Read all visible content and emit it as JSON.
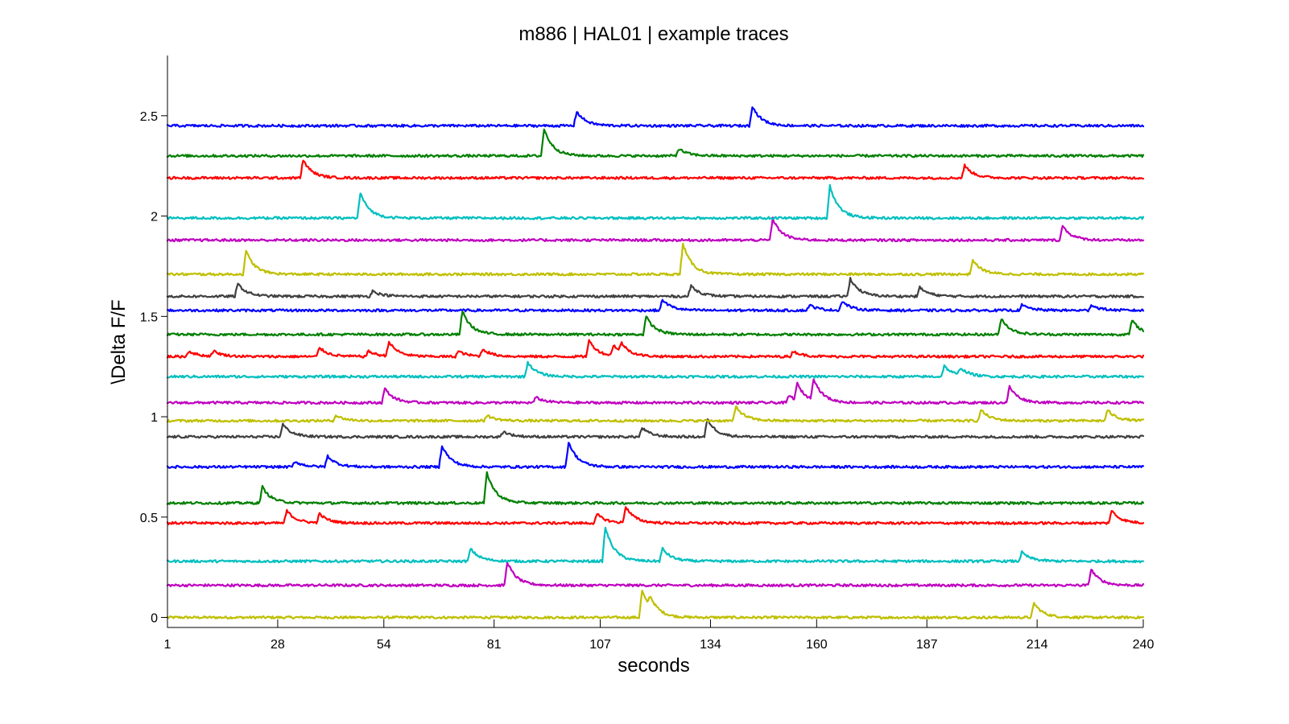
{
  "chart_data": {
    "type": "line",
    "title": "m886 | HAL01 | example traces",
    "xlabel": "seconds",
    "ylabel": "\\Delta F/F",
    "xlim": [
      1,
      240
    ],
    "ylim": [
      -0.05,
      2.8
    ],
    "x_ticks": [
      1,
      28,
      54,
      81,
      107,
      134,
      160,
      187,
      214,
      240
    ],
    "y_ticks": [
      0,
      0.5,
      1,
      1.5,
      2,
      2.5
    ],
    "y_tick_labels": [
      "0",
      "0.5",
      "1",
      "1.5",
      "2",
      "2.5"
    ],
    "grid": false,
    "legend": "none",
    "series": [
      {
        "color": "#bfbf00",
        "baseline": 0.0,
        "transients": [
          [
            117,
            0.15
          ],
          [
            119,
            0.06
          ],
          [
            213,
            0.08
          ]
        ]
      },
      {
        "color": "#bf00bf",
        "baseline": 0.16,
        "transients": [
          [
            84,
            0.13
          ],
          [
            227,
            0.09
          ]
        ]
      },
      {
        "color": "#00bfbf",
        "baseline": 0.28,
        "transients": [
          [
            75,
            0.07
          ],
          [
            108,
            0.19
          ],
          [
            122,
            0.07
          ],
          [
            210,
            0.05
          ]
        ]
      },
      {
        "color": "#ff0000",
        "baseline": 0.47,
        "transients": [
          [
            30,
            0.07
          ],
          [
            38,
            0.05
          ],
          [
            106,
            0.05
          ],
          [
            113,
            0.09
          ],
          [
            232,
            0.07
          ]
        ]
      },
      {
        "color": "#008000",
        "baseline": 0.57,
        "transients": [
          [
            24,
            0.09
          ],
          [
            79,
            0.17
          ]
        ]
      },
      {
        "color": "#0000ff",
        "baseline": 0.75,
        "transients": [
          [
            32,
            0.03
          ],
          [
            40,
            0.06
          ],
          [
            68,
            0.12
          ],
          [
            99,
            0.14
          ]
        ]
      },
      {
        "color": "#404040",
        "baseline": 0.9,
        "transients": [
          [
            29,
            0.07
          ],
          [
            83,
            0.03
          ],
          [
            117,
            0.05
          ],
          [
            133,
            0.1
          ]
        ]
      },
      {
        "color": "#bfbf00",
        "baseline": 0.98,
        "transients": [
          [
            42,
            0.03
          ],
          [
            79,
            0.03
          ],
          [
            140,
            0.08
          ],
          [
            200,
            0.06
          ],
          [
            231,
            0.06
          ]
        ]
      },
      {
        "color": "#bf00bf",
        "baseline": 1.07,
        "transients": [
          [
            54,
            0.08
          ],
          [
            91,
            0.03
          ],
          [
            153,
            0.04
          ],
          [
            155,
            0.09
          ],
          [
            159,
            0.12
          ],
          [
            207,
            0.09
          ]
        ]
      },
      {
        "color": "#00bfbf",
        "baseline": 1.2,
        "transients": [
          [
            89,
            0.08
          ],
          [
            191,
            0.06
          ],
          [
            195,
            0.04
          ]
        ]
      },
      {
        "color": "#ff0000",
        "baseline": 1.3,
        "transients": [
          [
            6,
            0.03
          ],
          [
            12,
            0.03
          ],
          [
            38,
            0.05
          ],
          [
            50,
            0.03
          ],
          [
            55,
            0.08
          ],
          [
            72,
            0.03
          ],
          [
            78,
            0.04
          ],
          [
            104,
            0.09
          ],
          [
            110,
            0.06
          ],
          [
            112,
            0.05
          ],
          [
            154,
            0.03
          ]
        ]
      },
      {
        "color": "#008000",
        "baseline": 1.41,
        "transients": [
          [
            73,
            0.13
          ],
          [
            118,
            0.1
          ],
          [
            205,
            0.09
          ],
          [
            237,
            0.08
          ]
        ]
      },
      {
        "color": "#0000ff",
        "baseline": 1.53,
        "transients": [
          [
            122,
            0.06
          ],
          [
            158,
            0.03
          ],
          [
            166,
            0.05
          ],
          [
            210,
            0.03
          ],
          [
            227,
            0.03
          ]
        ]
      },
      {
        "color": "#404040",
        "baseline": 1.6,
        "transients": [
          [
            18,
            0.07
          ],
          [
            51,
            0.03
          ],
          [
            129,
            0.06
          ],
          [
            168,
            0.1
          ],
          [
            185,
            0.05
          ]
        ]
      },
      {
        "color": "#bfbf00",
        "baseline": 1.71,
        "transients": [
          [
            20,
            0.13
          ],
          [
            127,
            0.17
          ],
          [
            198,
            0.08
          ]
        ]
      },
      {
        "color": "#bf00bf",
        "baseline": 1.88,
        "transients": [
          [
            149,
            0.12
          ],
          [
            220,
            0.08
          ]
        ]
      },
      {
        "color": "#00bfbf",
        "baseline": 1.99,
        "transients": [
          [
            48,
            0.14
          ],
          [
            163,
            0.18
          ]
        ]
      },
      {
        "color": "#ff0000",
        "baseline": 2.19,
        "transients": [
          [
            34,
            0.1
          ],
          [
            196,
            0.07
          ]
        ]
      },
      {
        "color": "#008000",
        "baseline": 2.3,
        "transients": [
          [
            93,
            0.15
          ],
          [
            126,
            0.04
          ]
        ]
      },
      {
        "color": "#0000ff",
        "baseline": 2.45,
        "transients": [
          [
            101,
            0.08
          ],
          [
            144,
            0.11
          ]
        ]
      }
    ]
  }
}
